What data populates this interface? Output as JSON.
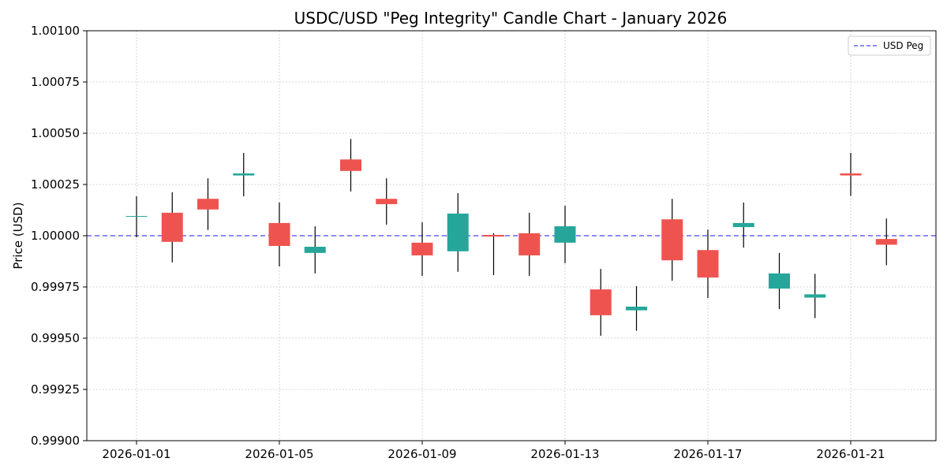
{
  "chart_data": {
    "type": "candlestick",
    "title": "USDC/USD \"Peg Integrity\" Candle Chart - January 2026",
    "xlabel": "",
    "ylabel": "Price (USD)",
    "ylim": [
      0.999,
      1.001
    ],
    "y_ticks": [
      "0.99900",
      "0.99925",
      "0.99950",
      "0.99975",
      "1.00000",
      "1.00025",
      "1.00050",
      "1.00075",
      "1.00100"
    ],
    "x_tick_labels": [
      "2026-01-01",
      "2026-01-05",
      "2026-01-09",
      "2026-01-13",
      "2026-01-17",
      "2026-01-21"
    ],
    "grid": true,
    "legend_position": "top-right",
    "peg": {
      "name": "USD Peg",
      "value": 1.0,
      "color": "#6666f5"
    },
    "colors": {
      "up": "#26a69a",
      "down": "#ef5350",
      "wick": "#000000"
    },
    "candles": [
      {
        "date": "2026-01-01",
        "open": 1.000094,
        "high": 1.000192,
        "low": 0.999992,
        "close": 1.000096
      },
      {
        "date": "2026-01-02",
        "open": 1.000112,
        "high": 1.000212,
        "low": 0.99987,
        "close": 0.99997
      },
      {
        "date": "2026-01-03",
        "open": 1.00018,
        "high": 1.00028,
        "low": 1.000028,
        "close": 1.000128
      },
      {
        "date": "2026-01-04",
        "open": 1.000294,
        "high": 1.000404,
        "low": 1.000192,
        "close": 1.000304
      },
      {
        "date": "2026-01-05",
        "open": 1.000062,
        "high": 1.000162,
        "low": 0.99985,
        "close": 0.99995
      },
      {
        "date": "2026-01-06",
        "open": 0.999916,
        "high": 1.000046,
        "low": 0.999816,
        "close": 0.999946
      },
      {
        "date": "2026-01-07",
        "open": 1.000372,
        "high": 1.000472,
        "low": 1.000216,
        "close": 1.000316
      },
      {
        "date": "2026-01-08",
        "open": 1.00018,
        "high": 1.00028,
        "low": 1.000054,
        "close": 1.000154
      },
      {
        "date": "2026-01-09",
        "open": 0.999966,
        "high": 1.000066,
        "low": 0.999804,
        "close": 0.999904
      },
      {
        "date": "2026-01-10",
        "open": 0.999924,
        "high": 1.000208,
        "low": 0.999824,
        "close": 1.000108
      },
      {
        "date": "2026-01-11",
        "open": 1.000004,
        "high": 1.000012,
        "low": 0.999808,
        "close": 0.999996
      },
      {
        "date": "2026-01-12",
        "open": 1.000012,
        "high": 1.000112,
        "low": 0.999804,
        "close": 0.999904
      },
      {
        "date": "2026-01-13",
        "open": 0.999966,
        "high": 1.000146,
        "low": 0.999866,
        "close": 1.000046
      },
      {
        "date": "2026-01-14",
        "open": 0.999738,
        "high": 0.999838,
        "low": 0.999512,
        "close": 0.999612
      },
      {
        "date": "2026-01-15",
        "open": 0.999636,
        "high": 0.999754,
        "low": 0.999536,
        "close": 0.999654
      },
      {
        "date": "2026-01-16",
        "open": 1.00008,
        "high": 1.00018,
        "low": 0.99978,
        "close": 0.99988
      },
      {
        "date": "2026-01-17",
        "open": 0.99993,
        "high": 1.00003,
        "low": 0.999696,
        "close": 0.999796
      },
      {
        "date": "2026-01-18",
        "open": 1.000042,
        "high": 1.000162,
        "low": 0.999942,
        "close": 1.000062
      },
      {
        "date": "2026-01-19",
        "open": 0.999742,
        "high": 0.999916,
        "low": 0.999642,
        "close": 0.999816
      },
      {
        "date": "2026-01-20",
        "open": 0.999698,
        "high": 0.999814,
        "low": 0.999598,
        "close": 0.999714
      },
      {
        "date": "2026-01-21",
        "open": 1.000304,
        "high": 1.000404,
        "low": 1.000194,
        "close": 1.000294
      },
      {
        "date": "2026-01-22",
        "open": 0.999984,
        "high": 1.000084,
        "low": 0.999856,
        "close": 0.999956
      }
    ]
  }
}
